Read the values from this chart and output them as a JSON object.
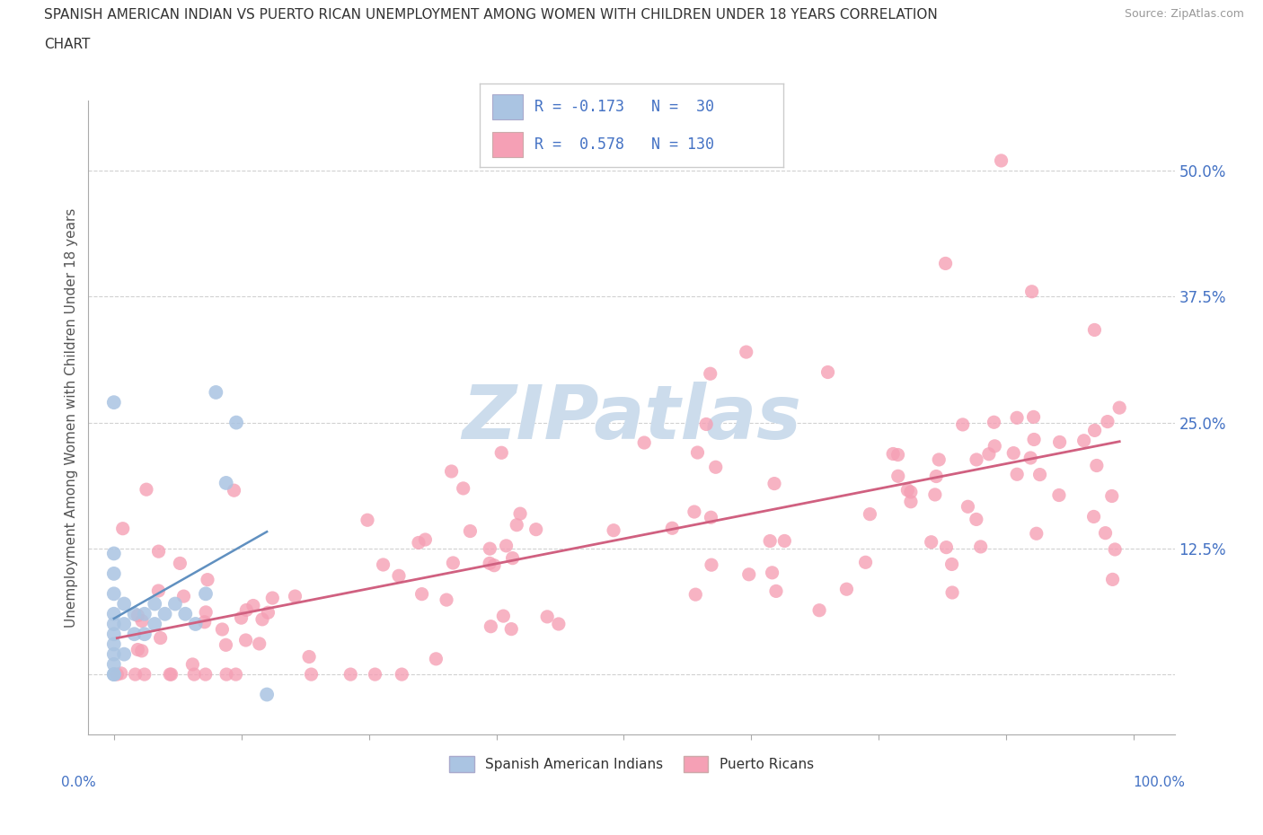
{
  "title_line1": "SPANISH AMERICAN INDIAN VS PUERTO RICAN UNEMPLOYMENT AMONG WOMEN WITH CHILDREN UNDER 18 YEARS CORRELATION",
  "title_line2": "CHART",
  "source": "Source: ZipAtlas.com",
  "ylabel": "Unemployment Among Women with Children Under 18 years",
  "color_blue": "#aac4e2",
  "color_pink": "#f5a0b5",
  "color_trend_blue": "#6090c0",
  "color_trend_pink": "#d06080",
  "color_text_blue": "#4472c4",
  "color_watermark": "#ccdcec",
  "background_color": "#ffffff",
  "grid_color": "#cccccc",
  "ytick_color": "#4472c4",
  "xlabel_color": "#4472c4",
  "legend_border": "#cccccc"
}
